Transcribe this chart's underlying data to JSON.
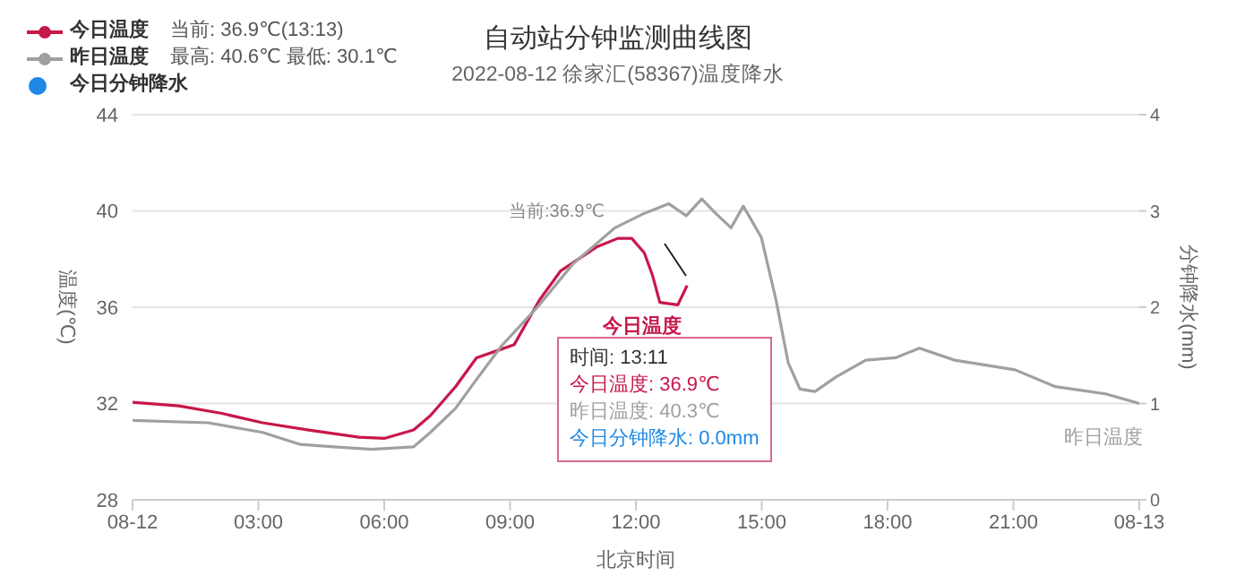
{
  "chart_data": {
    "type": "line",
    "title": "自动站分钟监测曲线图",
    "subtitle": "2022-08-12 徐家汇(58367)温度降水",
    "xlabel": "北京时间",
    "ylabel": "温度(℃)",
    "y2label": "分钟降水(mm)",
    "xlim": [
      0,
      24
    ],
    "xticks": [
      {
        "value": 0,
        "label": "08-12"
      },
      {
        "value": 3,
        "label": "03:00"
      },
      {
        "value": 6,
        "label": "06:00"
      },
      {
        "value": 9,
        "label": "09:00"
      },
      {
        "value": 12,
        "label": "12:00"
      },
      {
        "value": 15,
        "label": "15:00"
      },
      {
        "value": 18,
        "label": "18:00"
      },
      {
        "value": 21,
        "label": "21:00"
      },
      {
        "value": 24,
        "label": "08-13"
      }
    ],
    "ylim": [
      28,
      44
    ],
    "yticks": [
      28,
      32,
      36,
      40,
      44
    ],
    "y2lim": [
      0,
      4
    ],
    "y2ticks": [
      0,
      1,
      2,
      3,
      4
    ],
    "grid": "y",
    "legend": "top left",
    "marker": "none",
    "line_style": "solid",
    "series": [
      {
        "name": "今日温度",
        "color": "#c8174a",
        "x": [
          0,
          1.1,
          2.1,
          3.1,
          4.2,
          5.4,
          6,
          6.7,
          7.1,
          7.7,
          8.2,
          8.7,
          9.1,
          9.7,
          10.2,
          11.06,
          11.57,
          11.9,
          12.2,
          12.4,
          12.57,
          13.0,
          13.22
        ],
        "values": [
          32.05,
          31.9,
          31.6,
          31.2,
          30.9,
          30.6,
          30.55,
          30.9,
          31.5,
          32.7,
          33.9,
          34.2,
          34.45,
          36.3,
          37.5,
          38.5,
          38.86,
          38.86,
          38.26,
          37.3,
          36.2,
          36.1,
          36.9
        ]
      },
      {
        "name": "昨日温度",
        "color": "#a0a0a0",
        "x": [
          0,
          1.8,
          3.1,
          4,
          4.8,
          5.7,
          6.7,
          7.1,
          7.7,
          8.2,
          8.8,
          9.7,
          10.5,
          11.5,
          12.2,
          12.78,
          13.2,
          13.57,
          13.9,
          14.27,
          14.56,
          14.99,
          15.34,
          15.63,
          15.91,
          16.27,
          16.77,
          17.48,
          18.19,
          18.76,
          19.6,
          21.04,
          22.0,
          23.2,
          24
        ],
        "values": [
          31.3,
          31.2,
          30.8,
          30.3,
          30.2,
          30.1,
          30.2,
          30.8,
          31.8,
          33.0,
          34.4,
          36.1,
          37.8,
          39.3,
          39.9,
          40.3,
          39.8,
          40.5,
          39.9,
          39.3,
          40.2,
          38.9,
          36.3,
          33.7,
          32.6,
          32.5,
          33.1,
          33.8,
          33.9,
          34.3,
          33.8,
          33.4,
          32.7,
          32.4,
          32.0
        ]
      },
      {
        "name": "今日分钟降水",
        "type": "bar",
        "axis": "y2",
        "color": "#1e88e5",
        "x": [
          13.18
        ],
        "values": [
          0
        ]
      }
    ],
    "annotations": [
      "当前: 36.9℃(13:13)",
      "最高: 40.6℃ 最低: 30.1℃",
      "当前:36.9℃",
      "时间: 13:11",
      "今日温度: 36.9℃",
      "昨日温度: 40.3℃",
      "今日分钟降水: 0.0mm"
    ]
  }
}
